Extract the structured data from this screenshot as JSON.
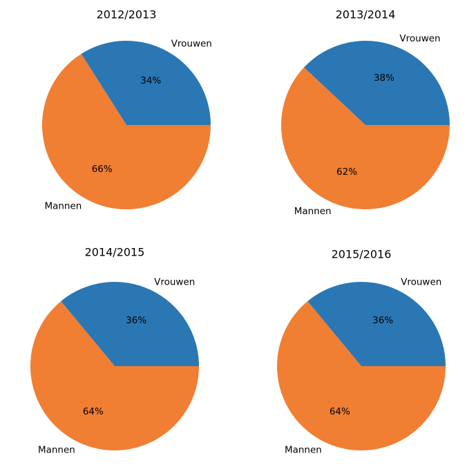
{
  "colors": {
    "vrouwen": "#2a77b4",
    "mannen": "#f07e33"
  },
  "chart_data": [
    {
      "type": "pie",
      "title": "2012/2013",
      "labels": [
        "Vrouwen",
        "Mannen"
      ],
      "values": [
        34,
        66
      ],
      "value_labels": [
        "34%",
        "66%"
      ]
    },
    {
      "type": "pie",
      "title": "2013/2014",
      "labels": [
        "Vrouwen",
        "Mannen"
      ],
      "values": [
        38,
        62
      ],
      "value_labels": [
        "38%",
        "62%"
      ]
    },
    {
      "type": "pie",
      "title": "2014/2015",
      "labels": [
        "Vrouwen",
        "Mannen"
      ],
      "values": [
        36,
        64
      ],
      "value_labels": [
        "36%",
        "64%"
      ]
    },
    {
      "type": "pie",
      "title": "2015/2016",
      "labels": [
        "Vrouwen",
        "Mannen"
      ],
      "values": [
        36,
        64
      ],
      "value_labels": [
        "36%",
        "64%"
      ]
    }
  ]
}
